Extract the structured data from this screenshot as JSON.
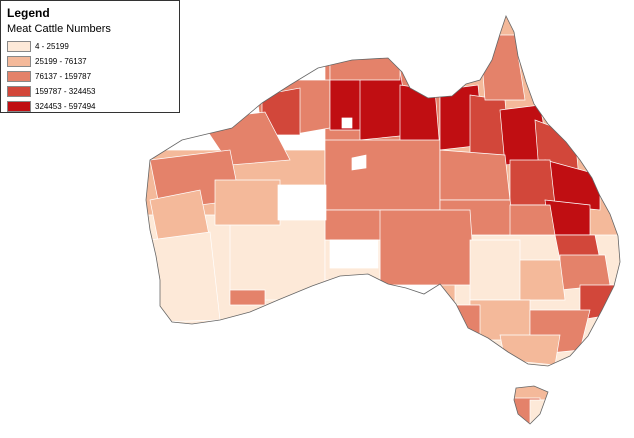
{
  "legend": {
    "title": "Legend",
    "subtitle": "Meat Cattle Numbers",
    "classes": [
      {
        "label": "4 - 25199",
        "color": "#fde9d8"
      },
      {
        "label": "25199 - 76137",
        "color": "#f4b99a"
      },
      {
        "label": "76137 - 159787",
        "color": "#e4826a"
      },
      {
        "label": "159787 - 324453",
        "color": "#d2473a"
      },
      {
        "label": "324453 - 597494",
        "color": "#c00e12"
      }
    ]
  },
  "colors": {
    "boundary": "#ffffff",
    "outline": "#555555",
    "no_data": "#ffffff"
  }
}
